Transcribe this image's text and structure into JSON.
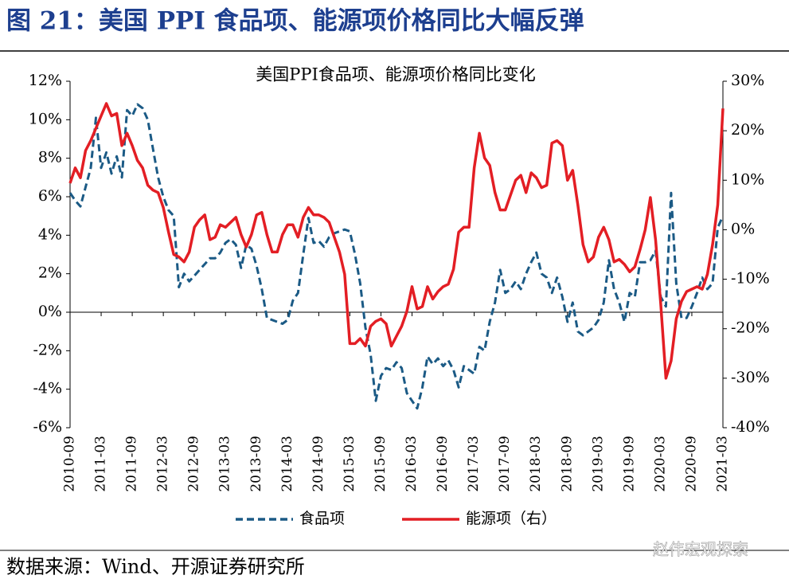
{
  "header": {
    "title": "图 21：美国 PPI 食品项、能源项价格同比大幅反弹"
  },
  "chart_data": {
    "type": "line",
    "title": "美国PPI食品项、能源项价格同比变化",
    "categories": [
      "2010-09",
      null,
      null,
      null,
      null,
      null,
      "2011-03",
      null,
      null,
      null,
      null,
      null,
      "2011-09",
      null,
      null,
      null,
      null,
      null,
      "2012-03",
      null,
      null,
      null,
      null,
      null,
      "2012-09",
      null,
      null,
      null,
      null,
      null,
      "2013-03",
      null,
      null,
      null,
      null,
      null,
      "2013-09",
      null,
      null,
      null,
      null,
      null,
      "2014-03",
      null,
      null,
      null,
      null,
      null,
      "2014-09",
      null,
      null,
      null,
      null,
      null,
      "2015-03",
      null,
      null,
      null,
      null,
      null,
      "2015-09",
      null,
      null,
      null,
      null,
      null,
      "2016-03",
      null,
      null,
      null,
      null,
      null,
      "2016-09",
      null,
      null,
      null,
      null,
      null,
      "2017-03",
      null,
      null,
      null,
      null,
      null,
      "2017-09",
      null,
      null,
      null,
      null,
      null,
      "2018-03",
      null,
      null,
      null,
      null,
      null,
      "2018-09",
      null,
      null,
      null,
      null,
      null,
      "2019-03",
      null,
      null,
      null,
      null,
      null,
      "2019-09",
      null,
      null,
      null,
      null,
      null,
      "2020-03",
      null,
      null,
      null,
      null,
      null,
      "2020-09",
      null,
      null,
      null,
      null,
      null,
      "2021-03"
    ],
    "series": [
      {
        "name": "食品项",
        "color": "#1b5a85",
        "dash": true,
        "axis": "y",
        "values": [
          6.2,
          5.8,
          5.5,
          6.5,
          7.5,
          10.1,
          7.5,
          8.3,
          7.2,
          8.1,
          7.0,
          10.5,
          10.2,
          10.8,
          10.6,
          10.0,
          8.5,
          7.0,
          6.0,
          5.3,
          5.0,
          1.3,
          2.0,
          1.6,
          1.9,
          2.2,
          2.5,
          2.8,
          2.8,
          3.1,
          3.6,
          3.8,
          3.5,
          2.3,
          3.5,
          3.3,
          2.4,
          1.2,
          -0.3,
          -0.4,
          -0.5,
          -0.6,
          -0.4,
          0.6,
          1.0,
          3.0,
          4.9,
          3.6,
          3.7,
          3.4,
          3.9,
          4.1,
          4.2,
          4.3,
          4.2,
          3.0,
          1.5,
          -0.8,
          -2.2,
          -4.6,
          -3.3,
          -2.9,
          -3.0,
          -2.6,
          -2.9,
          -4.2,
          -4.6,
          -5.0,
          -3.9,
          -2.3,
          -2.7,
          -2.4,
          -2.8,
          -2.5,
          -3.0,
          -3.9,
          -2.8,
          -3.0,
          -3.2,
          -1.8,
          -2.0,
          -0.5,
          0.5,
          2.2,
          1.0,
          1.2,
          1.6,
          1.2,
          2.0,
          2.6,
          3.1,
          2.0,
          1.8,
          1.0,
          1.8,
          0.8,
          -0.5,
          0.5,
          -1.0,
          -1.2,
          -1.0,
          -0.8,
          -0.4,
          0.5,
          2.7,
          1.2,
          0.5,
          -0.5,
          1.0,
          0.8,
          2.6,
          2.6,
          2.7,
          3.2,
          0.8,
          0.3,
          6.2,
          1.5,
          -0.3,
          -0.3,
          0.3,
          1.0,
          1.8,
          1.2,
          1.5,
          4.4,
          5.0
        ]
      },
      {
        "name": "能源项（右）",
        "color": "#e31e24",
        "dash": false,
        "axis": "y2",
        "values": [
          9.4,
          12.5,
          10.5,
          16.0,
          18.0,
          20.5,
          23.0,
          25.5,
          23.0,
          23.5,
          17.0,
          19.5,
          17.0,
          14.0,
          12.5,
          9.0,
          8.0,
          7.5,
          4.5,
          -0.5,
          -5.0,
          -5.5,
          -6.5,
          -4.5,
          0.5,
          2.0,
          3.0,
          -2.0,
          -1.5,
          1.0,
          0.5,
          1.5,
          2.5,
          -1.0,
          -3.5,
          -1.0,
          3.0,
          3.5,
          -1.0,
          -4.5,
          -4.5,
          -1.0,
          1.0,
          1.0,
          -1.5,
          2.5,
          4.5,
          3.0,
          3.0,
          2.5,
          1.5,
          -1.5,
          -4.5,
          -9.0,
          -23.0,
          -23.0,
          -22.0,
          -23.5,
          -19.5,
          -18.5,
          -18.0,
          -19.0,
          -23.5,
          -21.5,
          -19.5,
          -16.5,
          -11.5,
          -16.0,
          -15.5,
          -11.5,
          -14.0,
          -12.5,
          -11.5,
          -11.0,
          -8.0,
          -0.5,
          0.5,
          0.5,
          12.5,
          19.5,
          14.5,
          13.0,
          7.5,
          4.0,
          4.0,
          7.0,
          10.0,
          11.0,
          7.5,
          11.5,
          10.5,
          8.5,
          9.0,
          17.5,
          18.0,
          17.0,
          10.0,
          12.0,
          5.0,
          -3.0,
          -6.5,
          -5.5,
          -1.5,
          0.5,
          -2.0,
          -6.5,
          -6.0,
          -7.0,
          -8.5,
          -7.5,
          -4.0,
          0.0,
          6.5,
          -2.0,
          -15.0,
          -30.0,
          -26.5,
          -18.0,
          -14.5,
          -12.5,
          -12.0,
          -11.5,
          -12.0,
          -9.0,
          -3.0,
          5.0,
          24.5
        ]
      }
    ],
    "ylim": [
      -6,
      12
    ],
    "yticks": [
      {
        "value": -6,
        "label": "-6%"
      },
      {
        "value": -4,
        "label": "-4%"
      },
      {
        "value": -2,
        "label": "-2%"
      },
      {
        "value": 0,
        "label": "0%"
      },
      {
        "value": 2,
        "label": "2%"
      },
      {
        "value": 4,
        "label": "4%"
      },
      {
        "value": 6,
        "label": "6%"
      },
      {
        "value": 8,
        "label": "8%"
      },
      {
        "value": 10,
        "label": "10%"
      },
      {
        "value": 12,
        "label": "12%"
      }
    ],
    "y2lim": [
      -40,
      30
    ],
    "y2ticks": [
      {
        "value": -40,
        "label": "-40%"
      },
      {
        "value": -30,
        "label": "-30%"
      },
      {
        "value": -20,
        "label": "-20%"
      },
      {
        "value": -10,
        "label": "-10%"
      },
      {
        "value": 0,
        "label": "0%"
      },
      {
        "value": 10,
        "label": "10%"
      },
      {
        "value": 20,
        "label": "20%"
      },
      {
        "value": 30,
        "label": "30%"
      }
    ],
    "grid": false,
    "legend": "bottom"
  },
  "footer": {
    "source": "数据来源：Wind、开源证券研究所",
    "watermark": "赵伟宏观探索"
  }
}
